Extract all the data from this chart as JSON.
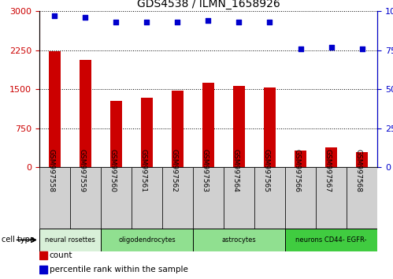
{
  "title": "GDS4538 / ILMN_1658926",
  "samples": [
    "GSM997558",
    "GSM997559",
    "GSM997560",
    "GSM997561",
    "GSM997562",
    "GSM997563",
    "GSM997564",
    "GSM997565",
    "GSM997566",
    "GSM997567",
    "GSM997568"
  ],
  "counts": [
    2230,
    2060,
    1280,
    1340,
    1480,
    1620,
    1560,
    1540,
    320,
    390,
    300
  ],
  "percentiles": [
    97,
    96,
    93,
    93,
    93,
    94,
    93,
    93,
    76,
    77,
    76
  ],
  "ylim_left": [
    0,
    3000
  ],
  "ylim_right": [
    0,
    100
  ],
  "yticks_left": [
    0,
    750,
    1500,
    2250,
    3000
  ],
  "yticks_right": [
    0,
    25,
    50,
    75,
    100
  ],
  "bar_color": "#cc0000",
  "dot_color": "#0000cc",
  "cell_types": [
    {
      "label": "neural rosettes",
      "start": 0,
      "end": 2,
      "color": "#d8f0d8"
    },
    {
      "label": "oligodendrocytes",
      "start": 2,
      "end": 5,
      "color": "#90e090"
    },
    {
      "label": "astrocytes",
      "start": 5,
      "end": 8,
      "color": "#90e090"
    },
    {
      "label": "neurons CD44- EGFR-",
      "start": 8,
      "end": 11,
      "color": "#40cc40"
    }
  ],
  "legend_count_color": "#cc0000",
  "legend_pct_color": "#0000cc",
  "tick_label_color_left": "#cc0000",
  "tick_label_color_right": "#0000cc",
  "xtick_box_color": "#d0d0d0",
  "cell_type_label": "cell type"
}
